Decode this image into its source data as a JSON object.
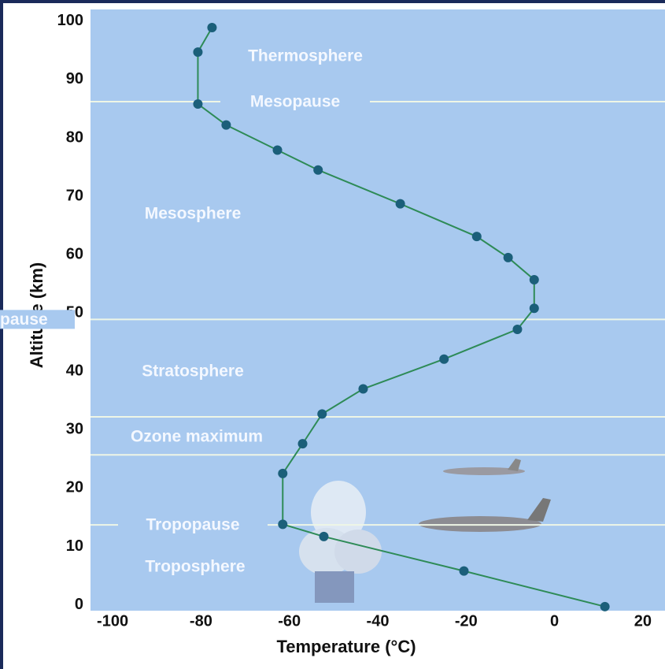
{
  "chart_data": {
    "type": "line",
    "x_label": "Temperature (°C)",
    "y_label": "Altitude (km)",
    "xlim": [
      -105,
      25
    ],
    "ylim": [
      -1,
      102
    ],
    "xticks": [
      -100,
      -80,
      -60,
      -40,
      -20,
      0,
      20
    ],
    "yticks": [
      0,
      10,
      20,
      30,
      40,
      50,
      60,
      70,
      80,
      90,
      100
    ],
    "series": [
      {
        "color": "#2e8b57",
        "marker_color": "#1b5f7a",
        "x": [
          -77.5,
          -80.7,
          -80.7,
          -74.3,
          -62.7,
          -53.5,
          -34.9,
          -17.6,
          -10.5,
          -4.6,
          -4.6,
          -8.4,
          -25.0,
          -43.3,
          -52.6,
          -57.0,
          -61.5,
          -61.5,
          -52.2,
          -20.5,
          11.4
        ],
        "values": [
          98.9,
          94.7,
          85.8,
          82.2,
          77.9,
          74.5,
          68.7,
          63.1,
          59.5,
          55.7,
          50.8,
          47.2,
          42.1,
          37.0,
          32.7,
          27.6,
          22.5,
          13.8,
          11.7,
          5.8,
          -0.3
        ]
      }
    ],
    "boundaries": [
      {
        "label": "Mesopause",
        "altitude": 86.2
      },
      {
        "label": "Stratopause",
        "altitude": 48.9
      },
      {
        "altitude": 32.2
      },
      {
        "altitude": 25.7
      },
      {
        "label": "Tropopause",
        "altitude": 13.7
      }
    ],
    "annotations": [
      "Thermosphere",
      "Mesosphere",
      "Stratosphere",
      "Ozone maximum",
      "Troposphere"
    ]
  }
}
